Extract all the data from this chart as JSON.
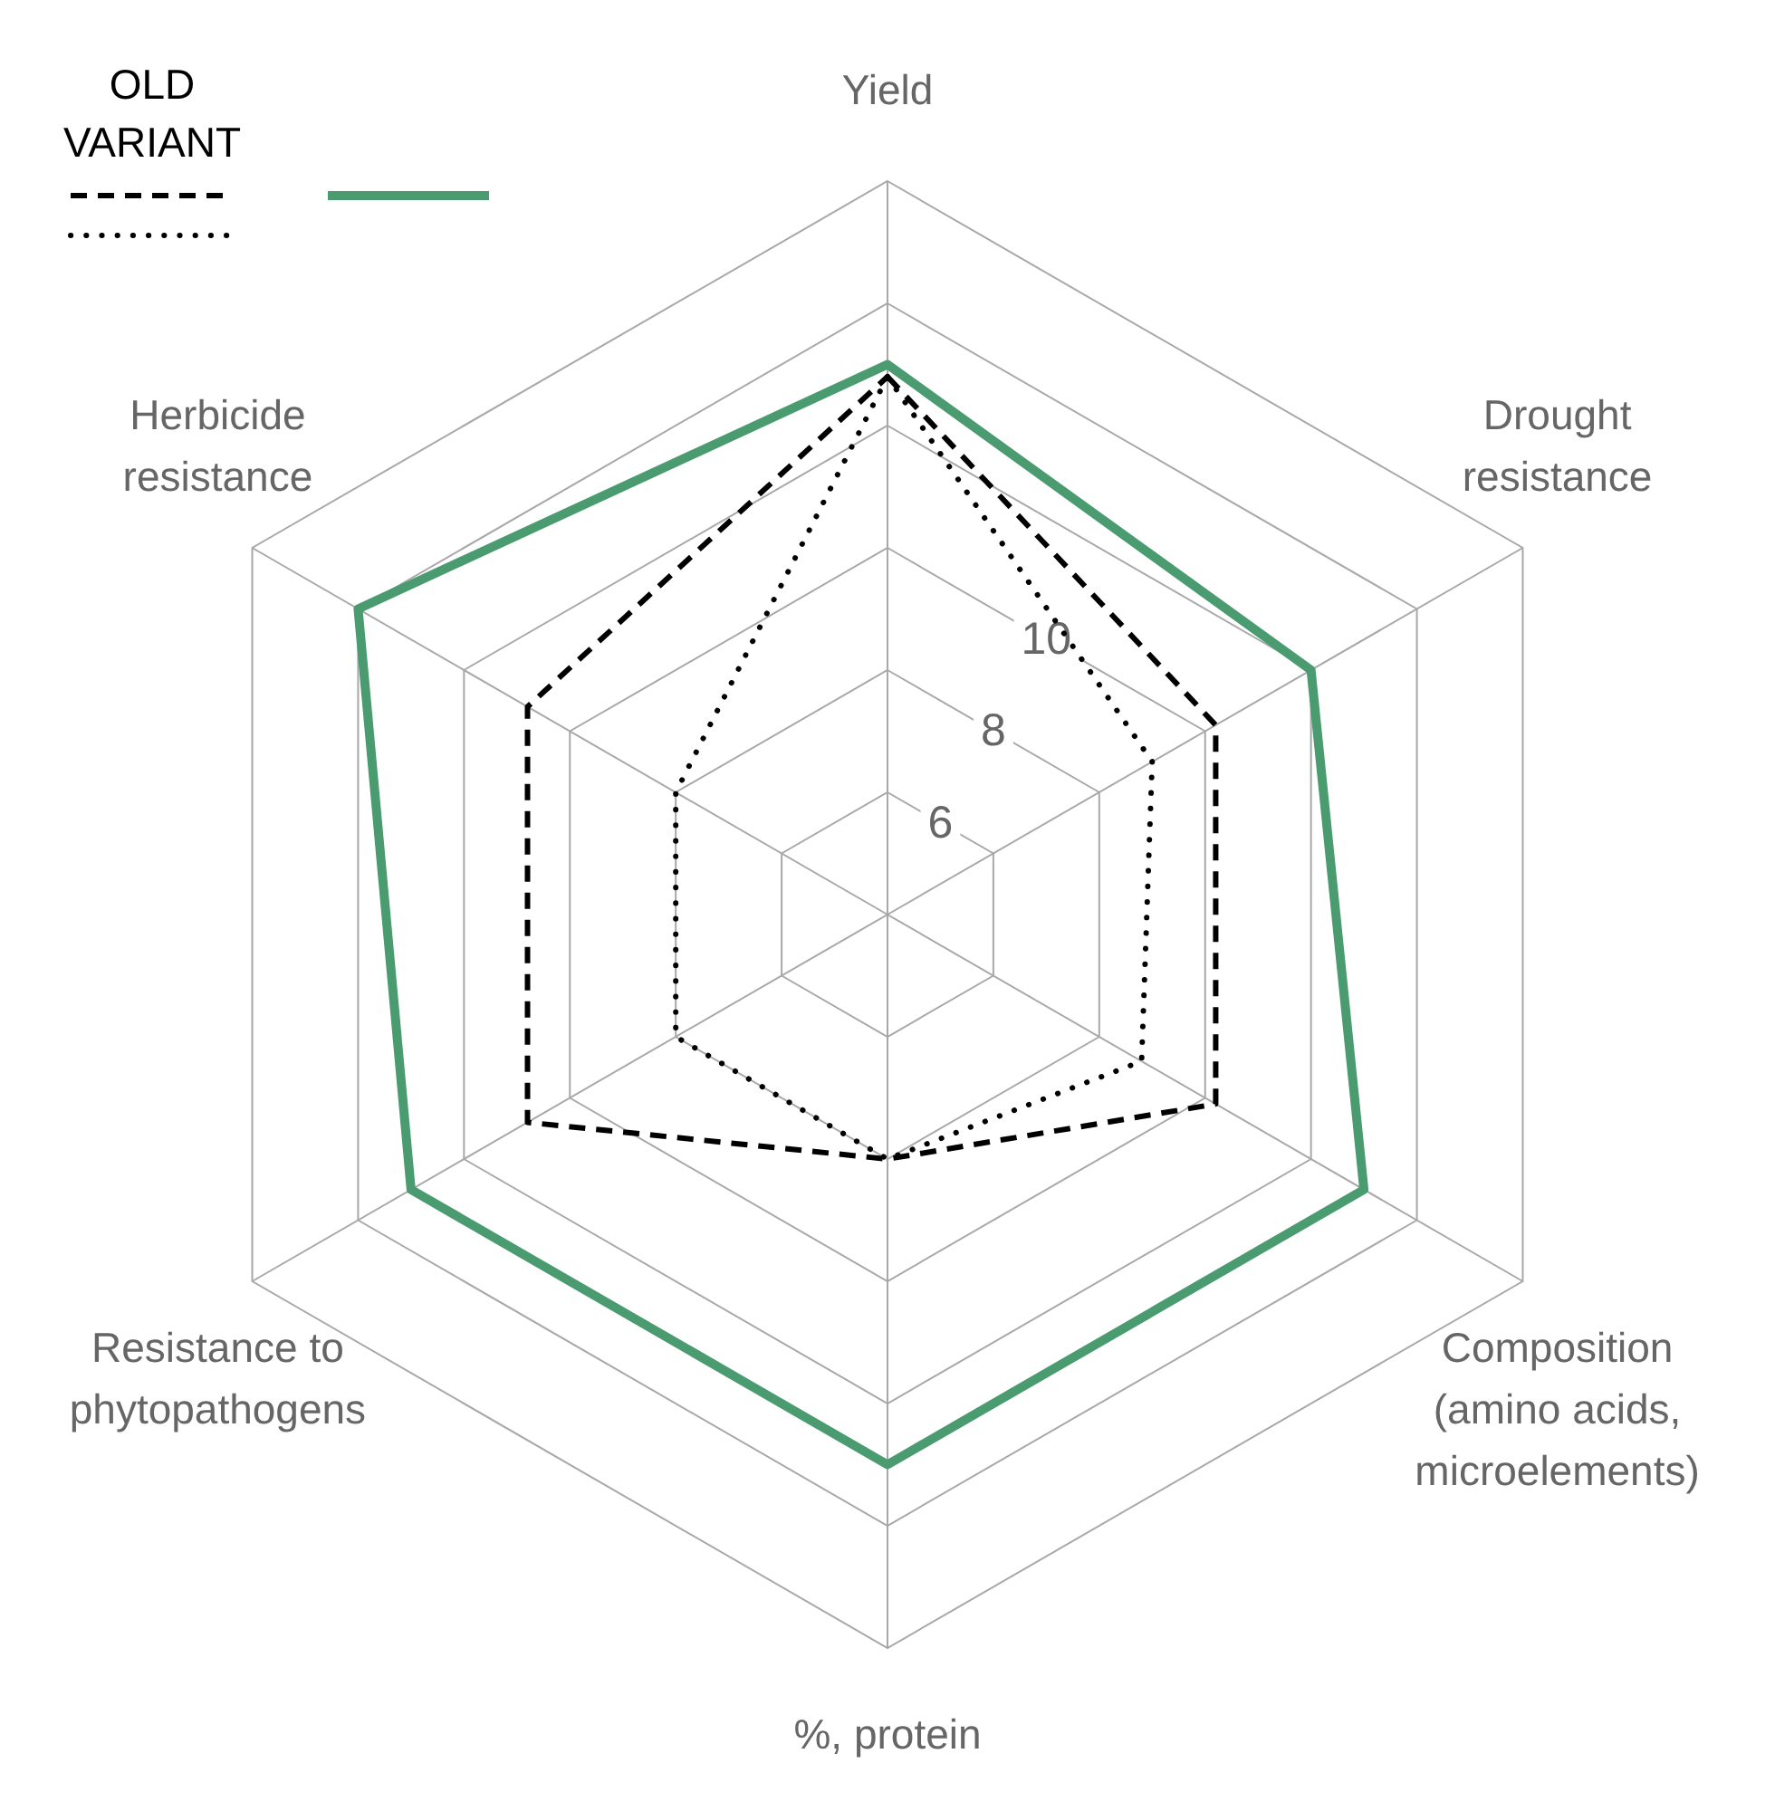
{
  "chart_data": {
    "type": "radar",
    "categories": [
      "Yield",
      "Drought resistance",
      "Composition (amino acids, microelements)",
      "%, protein",
      "Resistance to phytopathogens",
      "Herbicide resistance"
    ],
    "series": [
      {
        "name": "OLD VARIANT",
        "color": "#000000",
        "line_style": "dashed",
        "values": [
          12.8,
          10.2,
          10.2,
          8,
          10.8,
          10.8
        ]
      },
      {
        "color": "#000000",
        "line_style": "dotted",
        "values": [
          12.8,
          9,
          8.8,
          8,
          8,
          8
        ]
      },
      {
        "color": "#4a9b6f",
        "line_style": "solid",
        "values": [
          13,
          12,
          13,
          13,
          13,
          14
        ]
      }
    ],
    "ylim": [
      4,
      16
    ],
    "yticks": [
      6,
      8,
      10
    ],
    "grid": true,
    "legend": "top left",
    "marker": "none"
  }
}
